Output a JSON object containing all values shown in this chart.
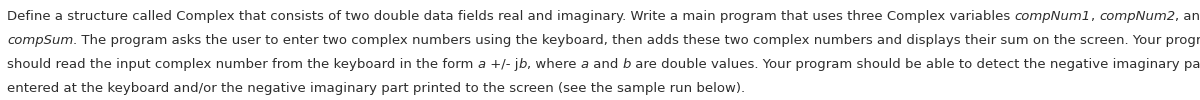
{
  "segments_line1": [
    {
      "text": "Define a structure called Complex that consists of two double data fields real and imaginary. Write a main program that uses three Complex variables ",
      "italic": false
    },
    {
      "text": "compNum1",
      "italic": true
    },
    {
      "text": ", ",
      "italic": false
    },
    {
      "text": "compNum2",
      "italic": true
    },
    {
      "text": ", and",
      "italic": false
    }
  ],
  "segments_line2": [
    {
      "text": "compSum",
      "italic": true
    },
    {
      "text": ". The program asks the user to enter two complex numbers using the keyboard, then adds these two complex numbers and displays their sum on the screen. Your program",
      "italic": false
    }
  ],
  "segments_line3": [
    {
      "text": "should read the input complex number from the keyboard in the form ",
      "italic": false
    },
    {
      "text": "a",
      "italic": true
    },
    {
      "text": " +/- j",
      "italic": false
    },
    {
      "text": "b",
      "italic": true
    },
    {
      "text": ", where ",
      "italic": false
    },
    {
      "text": "a",
      "italic": true
    },
    {
      "text": " and ",
      "italic": false
    },
    {
      "text": "b",
      "italic": true
    },
    {
      "text": " are double values. Your program should be able to detect the negative imaginary part",
      "italic": false
    }
  ],
  "segments_line4": [
    {
      "text": "entered at the keyboard and/or the negative imaginary part printed to the screen (see the sample run below).",
      "italic": false
    }
  ],
  "background_color": "#ffffff",
  "text_color": "#2d2d2d",
  "font_size": 9.5
}
